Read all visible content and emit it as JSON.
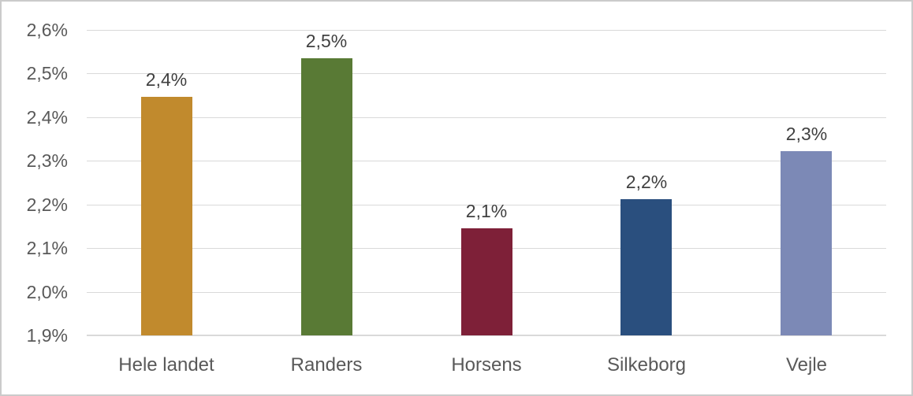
{
  "chart_data": {
    "type": "bar",
    "title": "",
    "xlabel": "",
    "ylabel": "",
    "categories": [
      "Hele landet",
      "Randers",
      "Horsens",
      "Silkeborg",
      "Vejle"
    ],
    "values": [
      2.447,
      2.535,
      2.145,
      2.212,
      2.322
    ],
    "data_labels": [
      "2,4%",
      "2,5%",
      "2,1%",
      "2,2%",
      "2,3%"
    ],
    "bar_colors": [
      "#C18A2D",
      "#597A35",
      "#7E2038",
      "#2A4F7E",
      "#7C89B6"
    ],
    "ylim": [
      1.9,
      2.6
    ],
    "ytick_step": 0.1,
    "ytick_labels": [
      "1,9%",
      "2,0%",
      "2,1%",
      "2,2%",
      "2,3%",
      "2,4%",
      "2,5%",
      "2,6%"
    ],
    "grid": true,
    "legend_position": "none",
    "decimal_separator": ","
  },
  "style": {
    "gridline_color": "#d9d9d9",
    "axis_text_color": "#595959",
    "data_label_color": "#404040",
    "border_color": "#cbcbcb",
    "background_color": "#ffffff"
  }
}
